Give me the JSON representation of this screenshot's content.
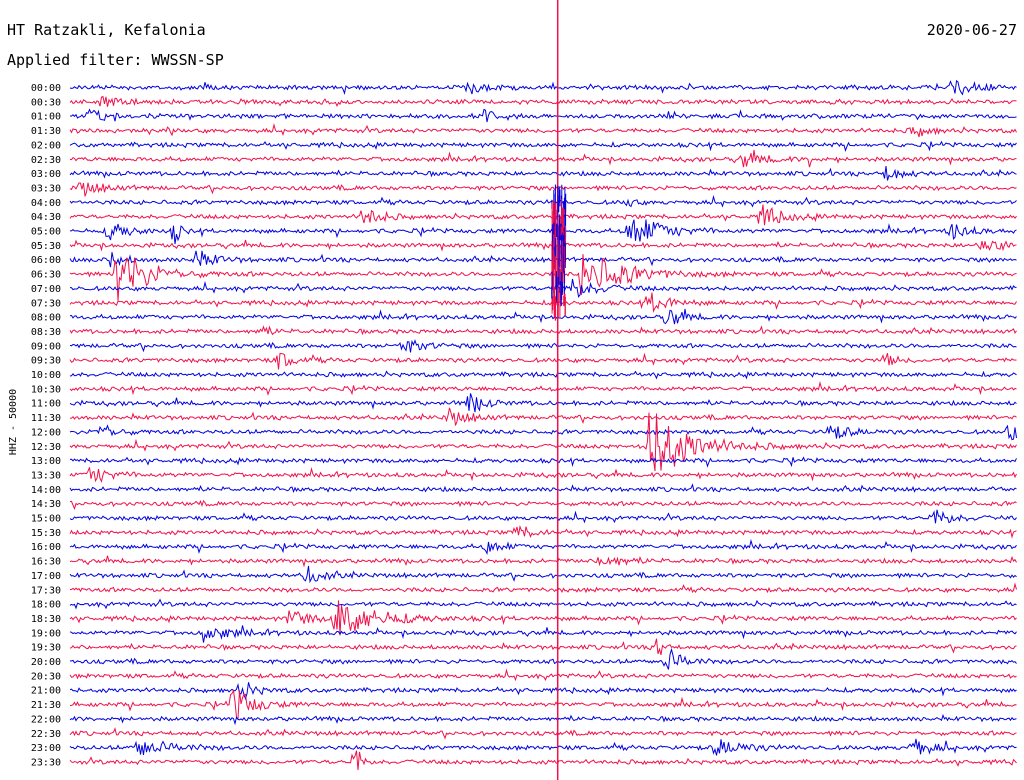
{
  "header": {
    "station": "HT Ratzakli, Kefalonia",
    "date": "2020-06-27",
    "filter": "Applied filter: WWSSN-SP"
  },
  "channel_label": "HHZ - 50000",
  "colors": {
    "trace_a": "#0000e0",
    "trace_b": "#f0104a",
    "text": "#000000"
  },
  "chart_data": {
    "type": "line",
    "description_kind": "helicorder",
    "row_labels": [
      "00:00",
      "00:30",
      "01:00",
      "01:30",
      "02:00",
      "02:30",
      "03:00",
      "03:30",
      "04:00",
      "04:30",
      "05:00",
      "05:30",
      "06:00",
      "06:30",
      "07:00",
      "07:30",
      "08:00",
      "08:30",
      "09:00",
      "09:30",
      "10:00",
      "10:30",
      "11:00",
      "11:30",
      "12:00",
      "12:30",
      "13:00",
      "13:30",
      "14:00",
      "14:30",
      "15:00",
      "15:30",
      "16:00",
      "16:30",
      "17:00",
      "17:30",
      "18:00",
      "18:30",
      "19:00",
      "19:30",
      "20:00",
      "20:30",
      "21:00",
      "21:30",
      "22:00",
      "22:30",
      "23:00",
      "23:30"
    ],
    "row_colors": "alternating trace_a / trace_b",
    "grid": false,
    "legend": "none",
    "events": [
      {
        "row": 0,
        "pos": 0.14,
        "amp": 6,
        "dur": 0.01
      },
      {
        "row": 0,
        "pos": 0.42,
        "amp": 7,
        "dur": 0.03
      },
      {
        "row": 0,
        "pos": 0.93,
        "amp": 12,
        "dur": 0.04
      },
      {
        "row": 1,
        "pos": 0.03,
        "amp": 8,
        "dur": 0.04
      },
      {
        "row": 2,
        "pos": 0.02,
        "amp": 6,
        "dur": 0.03
      },
      {
        "row": 2,
        "pos": 0.44,
        "amp": 12,
        "dur": 0.01
      },
      {
        "row": 3,
        "pos": 0.89,
        "amp": 7,
        "dur": 0.03
      },
      {
        "row": 5,
        "pos": 0.71,
        "amp": 8,
        "dur": 0.04
      },
      {
        "row": 5,
        "pos": 0.78,
        "amp": 8,
        "dur": 0.01
      },
      {
        "row": 6,
        "pos": 0.86,
        "amp": 9,
        "dur": 0.03
      },
      {
        "row": 7,
        "pos": 0.01,
        "amp": 9,
        "dur": 0.04
      },
      {
        "row": 8,
        "pos": 0.59,
        "amp": 8,
        "dur": 0.01
      },
      {
        "row": 9,
        "pos": 0.31,
        "amp": 13,
        "dur": 0.03
      },
      {
        "row": 9,
        "pos": 0.73,
        "amp": 12,
        "dur": 0.04
      },
      {
        "row": 10,
        "pos": 0.04,
        "amp": 10,
        "dur": 0.04
      },
      {
        "row": 10,
        "pos": 0.11,
        "amp": 16,
        "dur": 0.01
      },
      {
        "row": 10,
        "pos": 0.59,
        "amp": 20,
        "dur": 0.06
      },
      {
        "row": 10,
        "pos": 0.93,
        "amp": 10,
        "dur": 0.03
      },
      {
        "row": 11,
        "pos": 0.96,
        "amp": 9,
        "dur": 0.04
      },
      {
        "row": 12,
        "pos": 0.04,
        "amp": 9,
        "dur": 0.03
      },
      {
        "row": 12,
        "pos": 0.13,
        "amp": 10,
        "dur": 0.04
      },
      {
        "row": 13,
        "pos": 0.05,
        "amp": 32,
        "dur": 0.06
      },
      {
        "row": 13,
        "pos": 0.54,
        "amp": 26,
        "dur": 0.08
      },
      {
        "row": 14,
        "pos": 0.53,
        "amp": 10,
        "dur": 0.05
      },
      {
        "row": 15,
        "pos": 0.61,
        "amp": 12,
        "dur": 0.04
      },
      {
        "row": 16,
        "pos": 0.63,
        "amp": 12,
        "dur": 0.03
      },
      {
        "row": 17,
        "pos": 0.2,
        "amp": 7,
        "dur": 0.02
      },
      {
        "row": 18,
        "pos": 0.35,
        "amp": 8,
        "dur": 0.04
      },
      {
        "row": 19,
        "pos": 0.22,
        "amp": 9,
        "dur": 0.03
      },
      {
        "row": 19,
        "pos": 0.86,
        "amp": 8,
        "dur": 0.02
      },
      {
        "row": 22,
        "pos": 0.42,
        "amp": 12,
        "dur": 0.03
      },
      {
        "row": 23,
        "pos": 0.4,
        "amp": 9,
        "dur": 0.04
      },
      {
        "row": 24,
        "pos": 0.03,
        "amp": 10,
        "dur": 0.03
      },
      {
        "row": 24,
        "pos": 0.8,
        "amp": 9,
        "dur": 0.04
      },
      {
        "row": 24,
        "pos": 0.99,
        "amp": 12,
        "dur": 0.02
      },
      {
        "row": 25,
        "pos": 0.61,
        "amp": 40,
        "dur": 0.08
      },
      {
        "row": 27,
        "pos": 0.02,
        "amp": 10,
        "dur": 0.04
      },
      {
        "row": 30,
        "pos": 0.91,
        "amp": 9,
        "dur": 0.04
      },
      {
        "row": 31,
        "pos": 0.47,
        "amp": 9,
        "dur": 0.03
      },
      {
        "row": 32,
        "pos": 0.44,
        "amp": 8,
        "dur": 0.03
      },
      {
        "row": 33,
        "pos": 0.56,
        "amp": 9,
        "dur": 0.04
      },
      {
        "row": 34,
        "pos": 0.25,
        "amp": 10,
        "dur": 0.03
      },
      {
        "row": 37,
        "pos": 0.23,
        "amp": 10,
        "dur": 0.04
      },
      {
        "row": 37,
        "pos": 0.28,
        "amp": 22,
        "dur": 0.08
      },
      {
        "row": 38,
        "pos": 0.14,
        "amp": 9,
        "dur": 0.05
      },
      {
        "row": 39,
        "pos": 0.62,
        "amp": 18,
        "dur": 0.01
      },
      {
        "row": 40,
        "pos": 0.63,
        "amp": 14,
        "dur": 0.03
      },
      {
        "row": 42,
        "pos": 0.18,
        "amp": 10,
        "dur": 0.03
      },
      {
        "row": 43,
        "pos": 0.17,
        "amp": 20,
        "dur": 0.04
      },
      {
        "row": 46,
        "pos": 0.07,
        "amp": 10,
        "dur": 0.06
      },
      {
        "row": 46,
        "pos": 0.68,
        "amp": 10,
        "dur": 0.05
      },
      {
        "row": 46,
        "pos": 0.89,
        "amp": 9,
        "dur": 0.04
      },
      {
        "row": 47,
        "pos": 0.3,
        "amp": 30,
        "dur": 0.01
      }
    ],
    "big_event": {
      "row": 11,
      "pos": 0.515,
      "top_row": 0,
      "bottom_row": 47
    }
  }
}
